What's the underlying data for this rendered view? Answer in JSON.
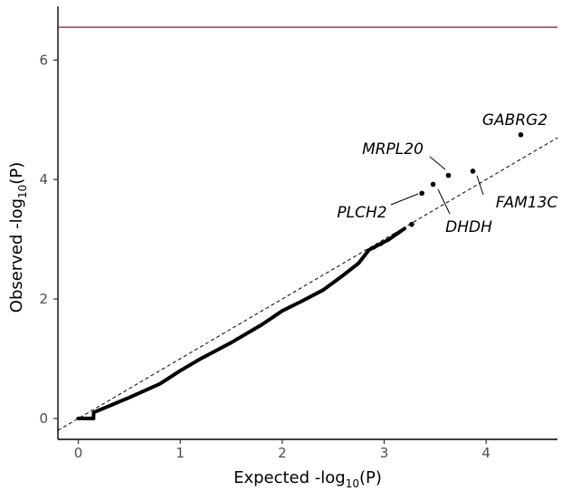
{
  "chart_data": {
    "type": "scatter",
    "title": "",
    "xlabel": {
      "main": "Expected -log",
      "sub": "10",
      "tail": "(P)"
    },
    "ylabel": {
      "main": "Observed -log",
      "sub": "10",
      "tail": "(P)"
    },
    "xlim": [
      -0.2,
      4.7
    ],
    "ylim": [
      -0.35,
      6.9
    ],
    "xticks": [
      0,
      1,
      2,
      3,
      4
    ],
    "yticks": [
      0,
      2,
      4,
      6
    ],
    "grid": false,
    "legend": "none",
    "significance_line": {
      "y": 6.55,
      "color": "#8b2e3c"
    },
    "diagonal": {
      "style": "dashed",
      "color": "#000000"
    },
    "point_color": "#000000",
    "qq_curve": [
      [
        0.0,
        0.0
      ],
      [
        0.15,
        0.0
      ],
      [
        0.15,
        0.1
      ],
      [
        0.5,
        0.35
      ],
      [
        0.8,
        0.58
      ],
      [
        1.0,
        0.8
      ],
      [
        1.2,
        1.0
      ],
      [
        1.5,
        1.27
      ],
      [
        1.8,
        1.57
      ],
      [
        2.0,
        1.8
      ],
      [
        2.2,
        1.97
      ],
      [
        2.4,
        2.15
      ],
      [
        2.6,
        2.4
      ],
      [
        2.75,
        2.6
      ],
      [
        2.85,
        2.82
      ],
      [
        3.05,
        3.0
      ],
      [
        3.2,
        3.18
      ]
    ],
    "points": [
      {
        "x": 3.27,
        "y": 3.25
      },
      {
        "x": 3.37,
        "y": 3.77,
        "label": "PLCH2"
      },
      {
        "x": 3.48,
        "y": 3.92,
        "label": "DHDH"
      },
      {
        "x": 3.63,
        "y": 4.07,
        "label": "MRPL20"
      },
      {
        "x": 3.87,
        "y": 4.14,
        "label": "FAM13C"
      },
      {
        "x": 4.34,
        "y": 4.75,
        "label": "GABRG2"
      }
    ]
  }
}
